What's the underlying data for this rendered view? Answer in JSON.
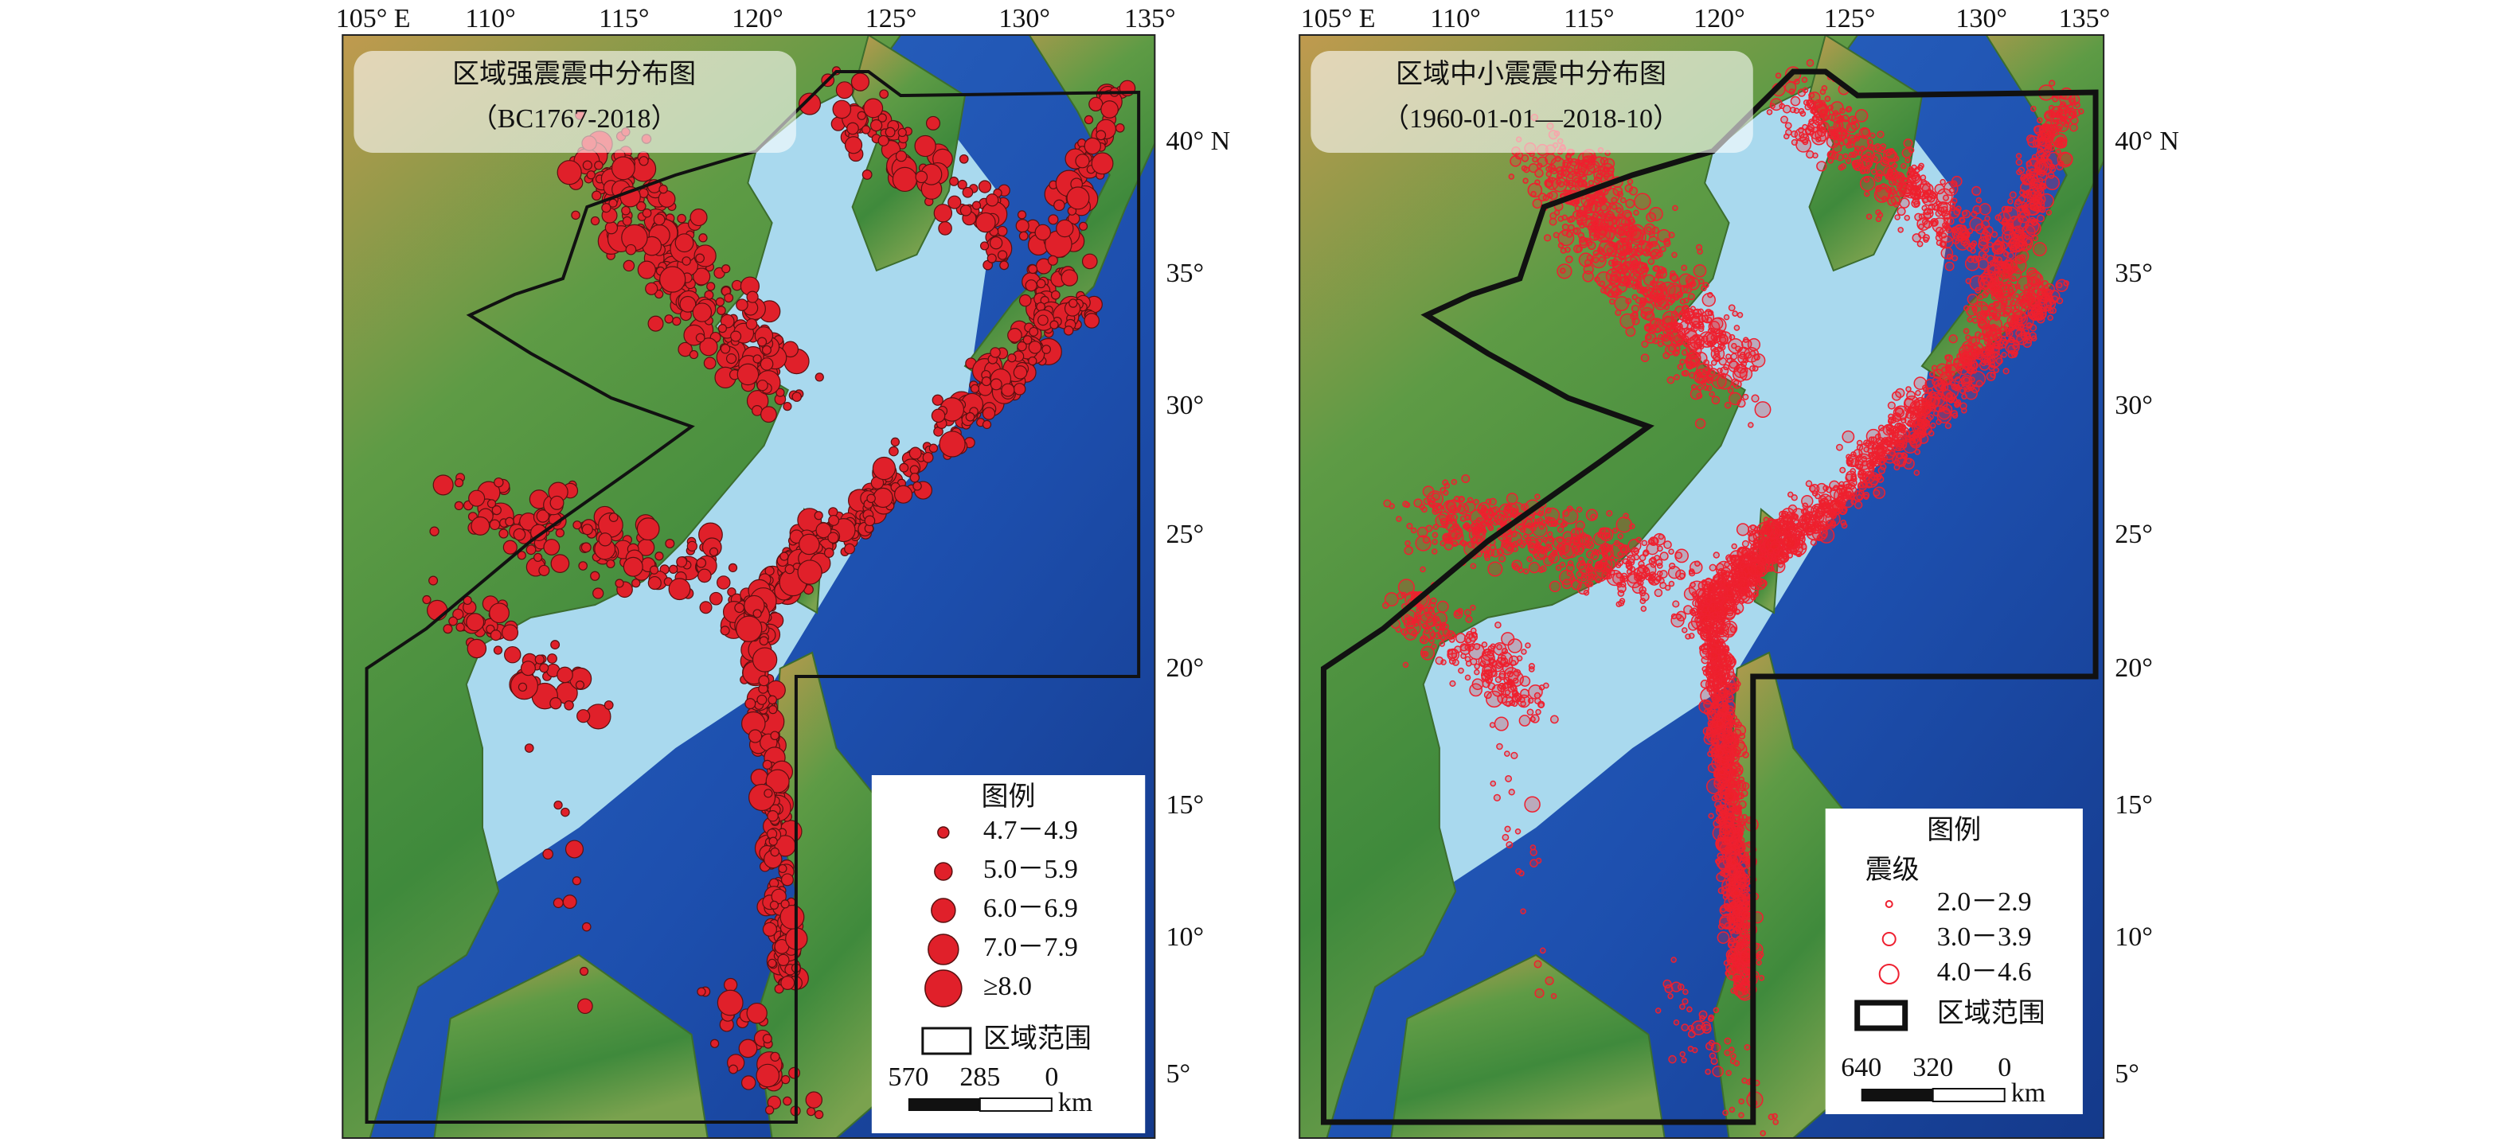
{
  "panels": [
    {
      "title": [
        "区域强震震中分布图",
        "（BC1767-2018）"
      ],
      "lon_labels": [
        "105° E",
        "110°",
        "115°",
        "120°",
        "125°",
        "130°",
        "135°"
      ],
      "lat_labels": [
        "40° N",
        "35°",
        "30°",
        "25°",
        "20°",
        "15°",
        "10°",
        "5°"
      ],
      "legend": {
        "title": "图例",
        "entries": [
          "4.7－4.9",
          "5.0－5.9",
          "6.0－6.9",
          "7.0－7.9",
          "≥8.0"
        ],
        "region": "区域范围"
      },
      "scale": {
        "labels": [
          "570",
          "285",
          "0"
        ],
        "unit": "km"
      }
    },
    {
      "title": [
        "区域中小震震中分布图",
        "（1960-01-01—2018-10）"
      ],
      "lon_labels": [
        "105° E",
        "110°",
        "115°",
        "120°",
        "125°",
        "130°",
        "135°"
      ],
      "lat_labels": [
        "40° N",
        "35°",
        "30°",
        "25°",
        "20°",
        "15°",
        "10°",
        "5°"
      ],
      "legend": {
        "title": "图例",
        "subtitle": "震级",
        "entries": [
          "2.0－2.9",
          "3.0－3.9",
          "4.0－4.6"
        ],
        "region": "区域范围"
      },
      "scale": {
        "labels": [
          "640",
          "320",
          "0"
        ],
        "unit": "km"
      }
    }
  ]
}
